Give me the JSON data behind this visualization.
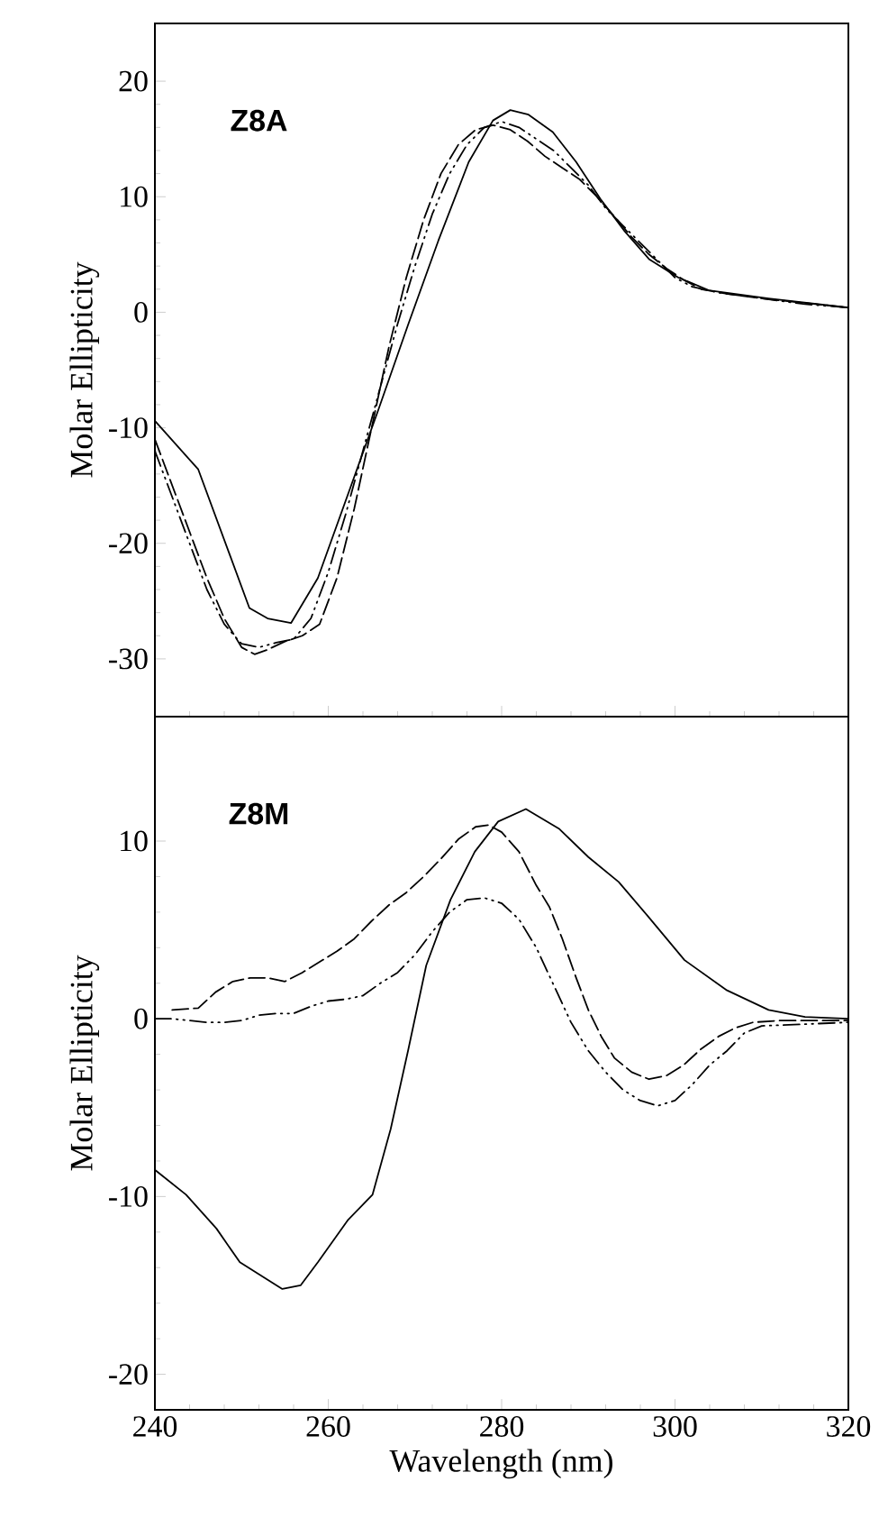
{
  "chart_data": [
    {
      "type": "line",
      "title": "Z8A",
      "ylabel": "Molar Ellipticity",
      "xlim": [
        240,
        320
      ],
      "xticks": [
        240,
        260,
        280,
        300,
        320
      ],
      "ylim": [
        -35,
        25
      ],
      "yticks": [
        -30,
        -20,
        -10,
        0,
        10,
        20
      ],
      "tick_labels": "y",
      "series": [
        {
          "color": "#000000",
          "line_style": "solid",
          "x": [
            240,
            245,
            250.9,
            253,
            255.7,
            258.8,
            262.3,
            265.8,
            269.2,
            272.7,
            276.2,
            279,
            281,
            283.1,
            285.9,
            288.6,
            291.4,
            294.2,
            297,
            300.4,
            303.9,
            310.8,
            320
          ],
          "values": [
            -9.4,
            -13.6,
            -25.6,
            -26.5,
            -26.9,
            -23,
            -15.7,
            -8.4,
            -1.1,
            6.2,
            13,
            16.6,
            17.5,
            17.1,
            15.6,
            13,
            9.8,
            7,
            4.6,
            3,
            1.9,
            1.2,
            0.4
          ]
        },
        {
          "color": "#000000",
          "line_style": "dashed",
          "x": [
            240,
            242,
            244,
            246,
            248,
            250,
            251.5,
            253,
            255,
            257,
            259,
            261,
            263,
            265,
            267,
            269,
            271,
            273,
            275,
            277,
            279,
            281,
            283,
            285,
            287,
            289,
            291,
            293,
            295,
            297,
            299,
            301,
            303,
            306,
            310,
            315,
            320
          ],
          "values": [
            -11,
            -15,
            -19,
            -23,
            -26.5,
            -29,
            -29.6,
            -29.2,
            -28.5,
            -28,
            -27,
            -23,
            -17,
            -10,
            -3,
            3,
            8,
            12,
            14.5,
            15.8,
            16.2,
            15.8,
            14.8,
            13.5,
            12.5,
            11.5,
            10,
            8.3,
            6.5,
            5,
            3.8,
            2.8,
            2,
            1.6,
            1.2,
            0.8,
            0.4
          ]
        },
        {
          "color": "#000000",
          "line_style": "dotted",
          "x": [
            240,
            242,
            244,
            246,
            248,
            250,
            252,
            254,
            256,
            258,
            260,
            262,
            264,
            266,
            268,
            270,
            272,
            274,
            276,
            278,
            280,
            282,
            284,
            286,
            288,
            290,
            292,
            294,
            296,
            298,
            300,
            302,
            305,
            310,
            315,
            320
          ],
          "values": [
            -12,
            -16,
            -20,
            -24,
            -27,
            -28.7,
            -29,
            -28.6,
            -28.3,
            -26.5,
            -22.5,
            -17.5,
            -12,
            -6.5,
            -1,
            4,
            8.5,
            12,
            14.5,
            16,
            16.5,
            16,
            15,
            14,
            12.5,
            11,
            9,
            7.5,
            6,
            4.5,
            3,
            2.2,
            1.7,
            1.2,
            0.7,
            0.4
          ]
        }
      ]
    },
    {
      "type": "line",
      "title": "Z8M",
      "xlabel": "Wavelength (nm)",
      "ylabel": "Molar Ellipticity",
      "xlim": [
        240,
        320
      ],
      "xticks": [
        240,
        260,
        280,
        300,
        320
      ],
      "ylim": [
        -22,
        17
      ],
      "yticks": [
        -20,
        -10,
        0,
        10
      ],
      "series": [
        {
          "color": "#000000",
          "line_style": "solid",
          "x": [
            240,
            243.6,
            247.1,
            249.8,
            254.7,
            256.8,
            258.8,
            262.3,
            265.1,
            267.2,
            269.2,
            271.3,
            274.1,
            276.9,
            279.6,
            282.8,
            286.6,
            290,
            293.5,
            297,
            301.1,
            306,
            310.8,
            315,
            320
          ],
          "values": [
            -8.5,
            -9.9,
            -11.8,
            -13.7,
            -15.2,
            -15,
            -13.7,
            -11.3,
            -9.9,
            -6.2,
            -1.8,
            3,
            6.7,
            9.4,
            11.1,
            11.8,
            10.7,
            9.1,
            7.7,
            5.7,
            3.3,
            1.6,
            0.5,
            0.1,
            0
          ]
        },
        {
          "color": "#000000",
          "line_style": "dashed",
          "x": [
            242,
            245,
            247,
            249,
            251,
            253,
            255,
            257,
            259,
            261,
            263,
            265,
            267,
            269,
            271,
            273,
            275,
            277,
            278.5,
            280,
            282,
            284,
            285.5,
            287,
            288.6,
            290,
            291.5,
            293,
            295,
            297,
            299,
            301,
            303,
            305,
            307,
            309,
            312,
            320
          ],
          "values": [
            0.5,
            0.6,
            1.5,
            2.1,
            2.3,
            2.3,
            2.1,
            2.6,
            3.2,
            3.8,
            4.5,
            5.5,
            6.4,
            7.1,
            8,
            9,
            10.1,
            10.8,
            10.9,
            10.5,
            9.4,
            7.5,
            6.3,
            4.5,
            2.3,
            0.5,
            -1,
            -2.2,
            -3,
            -3.4,
            -3.2,
            -2.6,
            -1.7,
            -1,
            -0.5,
            -0.2,
            -0.1,
            -0.1
          ]
        },
        {
          "color": "#000000",
          "line_style": "dotted",
          "x": [
            240,
            242,
            244,
            246,
            248,
            250,
            252,
            254,
            256,
            258,
            260,
            262,
            264,
            266,
            268,
            270,
            272,
            274,
            276,
            278,
            280,
            282,
            284,
            286,
            288,
            290,
            292,
            294,
            296,
            298,
            300,
            302,
            304,
            306,
            308,
            310,
            315,
            320
          ],
          "values": [
            0,
            0,
            -0.1,
            -0.2,
            -0.2,
            -0.1,
            0.2,
            0.3,
            0.3,
            0.7,
            1,
            1.1,
            1.3,
            2,
            2.6,
            3.6,
            4.9,
            6,
            6.7,
            6.8,
            6.5,
            5.6,
            4,
            1.9,
            -0.2,
            -1.8,
            -3,
            -4,
            -4.6,
            -4.9,
            -4.6,
            -3.7,
            -2.6,
            -1.8,
            -0.8,
            -0.4,
            -0.3,
            -0.2
          ]
        }
      ]
    }
  ]
}
